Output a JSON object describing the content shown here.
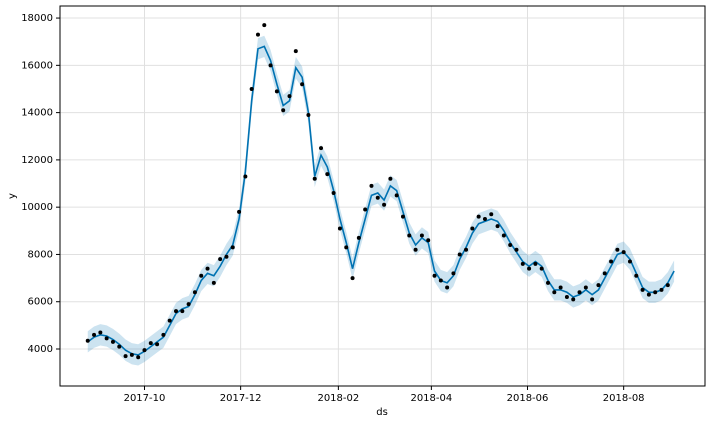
{
  "chart_data": {
    "type": "forecast",
    "xlabel": "ds",
    "ylabel": "y",
    "xlim": [
      -4.4,
      97.9
    ],
    "xticks": [
      {
        "value": 9,
        "label": "2017-10"
      },
      {
        "value": 24.25,
        "label": "2017-12"
      },
      {
        "value": 39.75,
        "label": "2018-02"
      },
      {
        "value": 54.5,
        "label": "2018-04"
      },
      {
        "value": 69.75,
        "label": "2018-06"
      },
      {
        "value": 85,
        "label": "2018-08"
      }
    ],
    "ylim": [
      2435,
      18510
    ],
    "yticks": [
      4000,
      6000,
      8000,
      10000,
      12000,
      14000,
      16000,
      18000
    ],
    "grid": true,
    "actual": {
      "color": "#000000",
      "values": [
        4350,
        4600,
        4700,
        4450,
        4300,
        4100,
        3700,
        3750,
        3650,
        3950,
        4250,
        4200,
        4600,
        5200,
        5600,
        5600,
        5900,
        6400,
        7100,
        7400,
        6800,
        7800,
        7900,
        8300,
        9800,
        11300,
        15000,
        17300,
        17700,
        16000,
        14900,
        14100,
        14700,
        16600,
        15200,
        13900,
        11200,
        12500,
        11400,
        10600,
        9100,
        8300,
        7000,
        8700,
        9900,
        10900,
        10400,
        10100,
        11200,
        10500,
        9600,
        8800,
        8200,
        8800,
        8600,
        7100,
        6900,
        6600,
        7200,
        8000,
        8200,
        9100,
        9600,
        9500,
        9700,
        9200,
        8800,
        8400,
        8200,
        7600,
        7400,
        7600,
        7400,
        6800,
        6400,
        6600,
        6200,
        6100,
        6400,
        6600,
        6100,
        6700,
        7200,
        7700,
        8200,
        8100,
        7700,
        7100,
        6500,
        6300,
        6400,
        6500,
        6700
      ]
    },
    "forecast": {
      "color": "#0072B2",
      "values": [
        4300,
        4500,
        4600,
        4550,
        4400,
        4200,
        3950,
        3800,
        3750,
        3900,
        4100,
        4300,
        4500,
        5000,
        5500,
        5700,
        5800,
        6300,
        6900,
        7200,
        7100,
        7500,
        8000,
        8400,
        9500,
        11500,
        14500,
        16700,
        16800,
        16200,
        15200,
        14300,
        14500,
        15900,
        15500,
        14000,
        11300,
        12200,
        11700,
        10700,
        9500,
        8500,
        7400,
        8500,
        9500,
        10500,
        10600,
        10300,
        10900,
        10700,
        9800,
        8900,
        8400,
        8700,
        8500,
        7300,
        6900,
        6800,
        7100,
        7800,
        8300,
        8900,
        9300,
        9400,
        9500,
        9400,
        9000,
        8500,
        8100,
        7700,
        7500,
        7700,
        7500,
        6900,
        6500,
        6500,
        6400,
        6200,
        6300,
        6500,
        6300,
        6500,
        7000,
        7500,
        8000,
        8100,
        7800,
        7200,
        6600,
        6400,
        6400,
        6500,
        6800,
        7300
      ],
      "lower": [
        3850,
        4050,
        4150,
        4100,
        3950,
        3750,
        3500,
        3350,
        3300,
        3450,
        3650,
        3850,
        4050,
        4550,
        5050,
        5250,
        5350,
        5850,
        6450,
        6750,
        6650,
        7050,
        7550,
        7950,
        9050,
        11050,
        14050,
        16250,
        16350,
        15750,
        14750,
        13850,
        14050,
        15450,
        15050,
        13550,
        10850,
        11750,
        11250,
        10250,
        9050,
        8050,
        6950,
        8050,
        9050,
        10050,
        10150,
        9850,
        10450,
        10250,
        9350,
        8450,
        7950,
        8250,
        8050,
        6850,
        6450,
        6350,
        6650,
        7350,
        7850,
        8450,
        8850,
        8950,
        9050,
        8950,
        8550,
        8050,
        7650,
        7250,
        7050,
        7250,
        7050,
        6450,
        6050,
        6050,
        5950,
        5750,
        5850,
        6050,
        5850,
        6050,
        6550,
        7050,
        7550,
        7650,
        7350,
        6750,
        6150,
        5950,
        5950,
        6050,
        6350,
        6850
      ],
      "upper": [
        4750,
        4950,
        5050,
        5000,
        4850,
        4650,
        4400,
        4250,
        4200,
        4350,
        4550,
        4750,
        4950,
        5450,
        5950,
        6150,
        6250,
        6750,
        7350,
        7650,
        7550,
        7950,
        8450,
        8850,
        9950,
        11950,
        14950,
        17150,
        17250,
        16650,
        15650,
        14750,
        14950,
        16350,
        15950,
        14450,
        11750,
        12650,
        12150,
        11150,
        9950,
        8950,
        7850,
        8950,
        9950,
        10950,
        11050,
        10750,
        11350,
        11150,
        10250,
        9350,
        8850,
        9150,
        8950,
        7750,
        7350,
        7250,
        7550,
        8250,
        8750,
        9350,
        9750,
        9850,
        9950,
        9850,
        9450,
        8950,
        8550,
        8150,
        7950,
        8150,
        7950,
        7350,
        6950,
        6950,
        6850,
        6650,
        6750,
        6950,
        6750,
        6950,
        7450,
        7950,
        8450,
        8550,
        8250,
        7650,
        7050,
        6850,
        6850,
        6950,
        7250,
        7750
      ]
    }
  }
}
